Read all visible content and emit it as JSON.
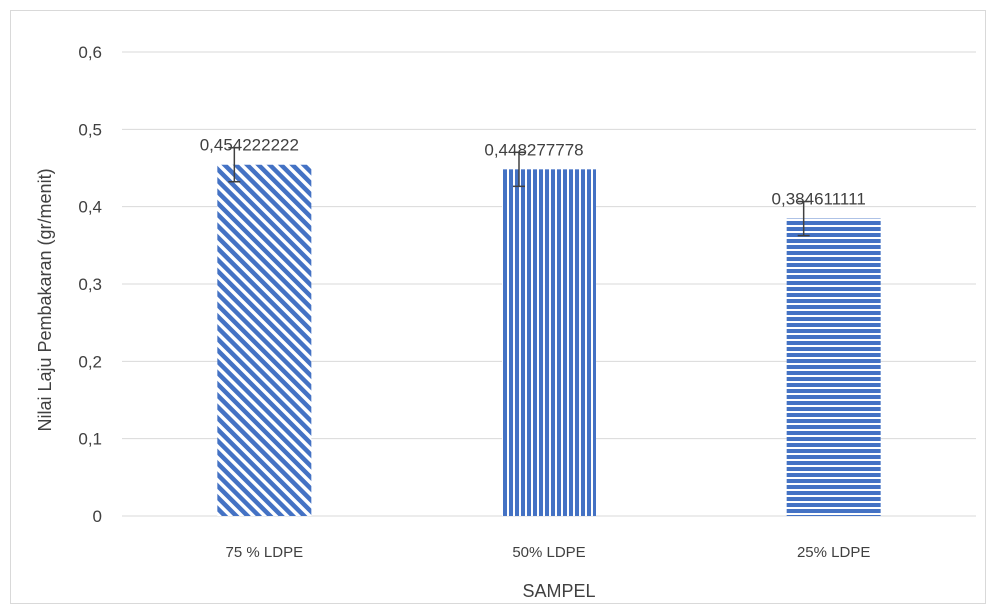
{
  "chart_data": {
    "type": "bar",
    "title": "",
    "xlabel": "SAMPEL",
    "ylabel": "Nilai Laju Pembakaran (gr/menit)",
    "ylim": [
      0,
      0.6
    ],
    "yticks": [
      "0",
      "0,1",
      "0,2",
      "0,3",
      "0,4",
      "0,5",
      "0,6"
    ],
    "grid": true,
    "categories": [
      "75 % LDPE",
      "50% LDPE",
      "25% LDPE"
    ],
    "values": [
      0.454222222,
      0.448277778,
      0.384611111
    ],
    "data_labels": [
      "0,454222222",
      "0,448277778",
      "0,384611111"
    ],
    "error_bars": [
      0.022,
      0.022,
      0.022
    ],
    "patterns": [
      "diagonal-stripes",
      "vertical-stripes",
      "horizontal-stripes"
    ],
    "colors": {
      "bar": "#4472c4",
      "grid": "#d9d9d9",
      "text": "#404040",
      "error": "#404040"
    }
  }
}
